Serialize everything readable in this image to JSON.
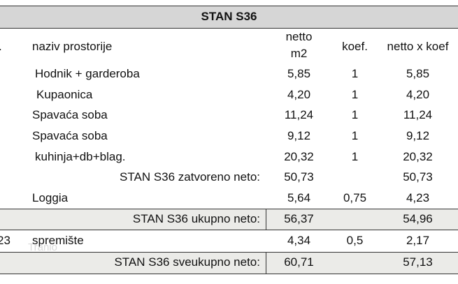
{
  "table": {
    "title": "STAN S36",
    "columns": {
      "no": ".",
      "name": "naziv prostorije",
      "netto": [
        "netto",
        "m2"
      ],
      "koef": "koef.",
      "nxk": "netto x koef"
    },
    "rows": [
      {
        "name": "Hodnik + garderoba",
        "netto": "5,85",
        "koef": "1",
        "nxk": "5,85"
      },
      {
        "name": "Kupaonica",
        "netto": "4,20",
        "koef": "1",
        "nxk": "4,20"
      },
      {
        "name": "Spavaća soba",
        "netto": "11,24",
        "koef": "1",
        "nxk": "11,24"
      },
      {
        "name": "Spavaća soba",
        "netto": "9,12",
        "koef": "1",
        "nxk": "9,12"
      },
      {
        "name": "kuhinja+db+blag.",
        "netto": "20,32",
        "koef": "1",
        "nxk": "20,32"
      },
      {
        "name": "STAN S36 zatvoreno neto:",
        "netto": "50,73",
        "nxk": "50,73"
      },
      {
        "name": "Loggia",
        "netto": "5,64",
        "koef": "0,75",
        "nxk": "4,23"
      },
      {
        "name": "STAN S36 ukupno neto:",
        "netto": "56,37",
        "nxk": "54,96"
      },
      {
        "no": "23",
        "name": "spremište",
        "netto": "4,34",
        "koef": "0,5",
        "nxk": "2,17"
      },
      {
        "name": "STAN S36 sveukupno neto:",
        "netto": "60,71",
        "nxk": "57,13"
      }
    ],
    "watermark": "Tranio"
  }
}
